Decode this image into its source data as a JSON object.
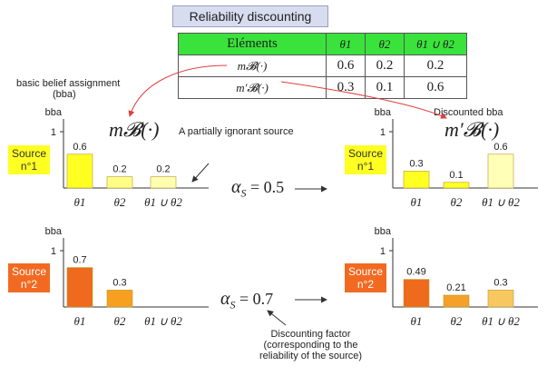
{
  "title": "Reliability discounting",
  "table": {
    "headers": [
      "Eléments",
      "θ1",
      "θ2",
      "θ1 ∪ θ2"
    ],
    "rows": [
      {
        "label": "m𝓑(·)",
        "values": [
          "0.6",
          "0.2",
          "0.2"
        ]
      },
      {
        "label": "m′𝓑(·)",
        "values": [
          "0.3",
          "0.1",
          "0.6"
        ]
      }
    ]
  },
  "annotations": {
    "bba_line1": "basic belief assignment",
    "bba_line2": "(bba)",
    "ignorant": "A partially ignorant source",
    "discounted": "Discounted bba",
    "factor_line1": "Discounting factor",
    "factor_line2": "(corresponding to the",
    "factor_line3": "reliability of the source)"
  },
  "formulas": {
    "m": "m𝓑(·)",
    "m_prime": "m′𝓑(·)",
    "alpha1": "= 0.5",
    "alpha2": "= 0.7",
    "alpha_symbol": "α",
    "alpha_sub": "S"
  },
  "sources": {
    "source1_line1": "Source",
    "source1_line2": "n°1",
    "source2_line1": "Source",
    "source2_line2": "n°2"
  },
  "axis": {
    "ylabel": "bba",
    "ytick": "1"
  },
  "colors": {
    "source1_bar_1": "#ffff22",
    "source1_bar_2": "#ffff88",
    "source1_bar_3": "#ffffb0",
    "source1_disc_3": "#ffffb8",
    "source2_bar_1": "#ee6a1c",
    "source2_bar_2": "#f7a020",
    "source2_disc_2": "#f5a028",
    "source2_disc_3": "#f8c860",
    "arrow_red": "#e04040",
    "table_header": "#39e33b"
  },
  "chart_data": [
    {
      "type": "bar",
      "name": "Source n°1 bba",
      "categories": [
        "θ1",
        "θ2",
        "θ1 ∪ θ2"
      ],
      "values": [
        0.6,
        0.2,
        0.2
      ],
      "labels": [
        "0.6",
        "0.2",
        "0.2"
      ],
      "ylim": [
        0,
        1
      ]
    },
    {
      "type": "bar",
      "name": "Source n°1 discounted",
      "categories": [
        "θ1",
        "θ2",
        "θ1 ∪ θ2"
      ],
      "values": [
        0.3,
        0.1,
        0.6
      ],
      "labels": [
        "0.3",
        "0.1",
        "0.6"
      ],
      "ylim": [
        0,
        1
      ]
    },
    {
      "type": "bar",
      "name": "Source n°2 bba",
      "categories": [
        "θ1",
        "θ2",
        "θ1 ∪ θ2"
      ],
      "values": [
        0.7,
        0.3,
        0
      ],
      "labels": [
        "0.7",
        "0.3",
        ""
      ],
      "ylim": [
        0,
        1
      ]
    },
    {
      "type": "bar",
      "name": "Source n°2 discounted",
      "categories": [
        "θ1",
        "θ2",
        "θ1 ∪ θ2"
      ],
      "values": [
        0.49,
        0.21,
        0.3
      ],
      "labels": [
        "0.49",
        "0.21",
        "0.3"
      ],
      "ylim": [
        0,
        1
      ]
    }
  ]
}
